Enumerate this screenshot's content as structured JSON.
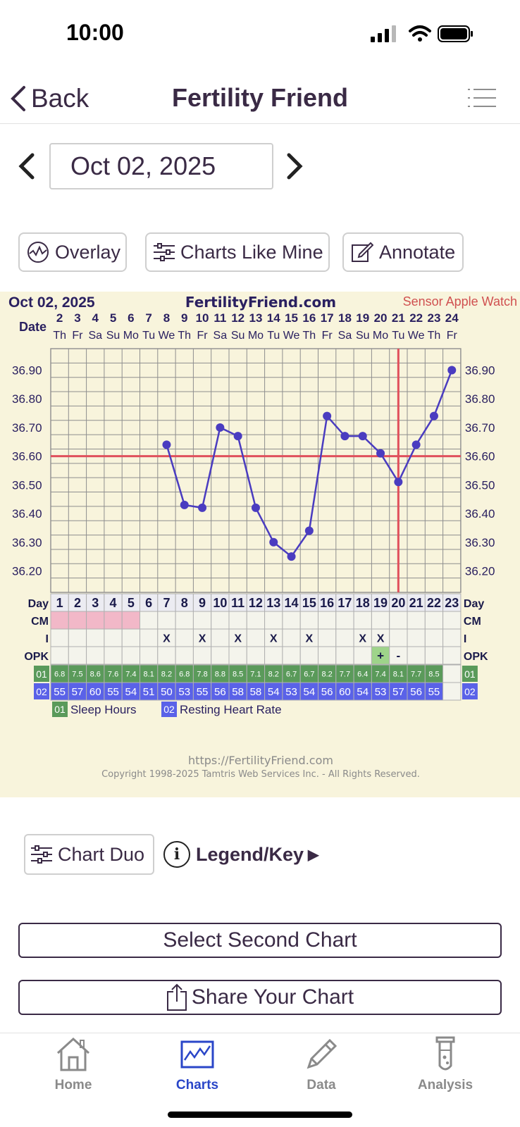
{
  "status": {
    "time": "10:00"
  },
  "nav": {
    "back_label": "Back",
    "title": "Fertility Friend"
  },
  "date_picker": {
    "value": "Oct 02, 2025"
  },
  "actions": {
    "overlay": "Overlay",
    "charts_like_mine": "Charts Like Mine",
    "annotate": "Annotate"
  },
  "chart_data": {
    "type": "line",
    "header": {
      "date": "Oct 02, 2025",
      "site": "FertilityFriend.com",
      "sensor": "Sensor Apple Watch"
    },
    "date_label": "Date",
    "dates": [
      "2",
      "3",
      "4",
      "5",
      "6",
      "7",
      "8",
      "9",
      "10",
      "11",
      "12",
      "13",
      "14",
      "15",
      "16",
      "17",
      "18",
      "19",
      "20",
      "21",
      "22",
      "23",
      "24"
    ],
    "weekdays": [
      "Th",
      "Fr",
      "Sa",
      "Su",
      "Mo",
      "Tu",
      "We",
      "Th",
      "Fr",
      "Sa",
      "Su",
      "Mo",
      "Tu",
      "We",
      "Th",
      "Fr",
      "Sa",
      "Su",
      "Mo",
      "Tu",
      "We",
      "Th",
      "Fr"
    ],
    "y_ticks": [
      "36.90",
      "36.80",
      "36.70",
      "36.60",
      "36.50",
      "36.40",
      "36.30",
      "36.20"
    ],
    "ylim": [
      36.125,
      36.975
    ],
    "temps": [
      null,
      null,
      null,
      null,
      null,
      null,
      36.64,
      36.43,
      36.42,
      36.7,
      36.67,
      36.42,
      36.3,
      36.25,
      36.34,
      36.74,
      36.67,
      36.67,
      36.61,
      36.51,
      36.64,
      36.74,
      36.9
    ],
    "coverline": 36.6,
    "ovulation_day_index": 19,
    "row_labels": {
      "day": "Day",
      "cm": "CM",
      "i": "I",
      "opk": "OPK",
      "r1": "01",
      "r2": "02"
    },
    "days": [
      "1",
      "2",
      "3",
      "4",
      "5",
      "6",
      "7",
      "8",
      "9",
      "10",
      "11",
      "12",
      "13",
      "14",
      "15",
      "16",
      "17",
      "18",
      "19",
      "20",
      "21",
      "22",
      "23"
    ],
    "cm": [
      "p",
      "p",
      "p",
      "p",
      "p",
      "",
      "",
      "",
      "",
      "",
      "",
      "",
      "",
      "",
      "",
      "",
      "",
      "",
      "",
      "",
      "",
      "",
      ""
    ],
    "intercourse": [
      "",
      "",
      "",
      "",
      "",
      "",
      "X",
      "",
      "X",
      "",
      "X",
      "",
      "X",
      "",
      "X",
      "",
      "",
      "X",
      "X",
      "",
      "",
      "",
      ""
    ],
    "opk": [
      "",
      "",
      "",
      "",
      "",
      "",
      "",
      "",
      "",
      "",
      "",
      "",
      "",
      "",
      "",
      "",
      "",
      "",
      "+",
      "-",
      "",
      "",
      ""
    ],
    "sleep_hours": [
      "6.8",
      "7.5",
      "8.6",
      "7.6",
      "7.4",
      "8.1",
      "8.2",
      "6.8",
      "7.8",
      "8.8",
      "8.5",
      "7.1",
      "8.2",
      "6.7",
      "6.7",
      "8.2",
      "7.7",
      "6.4",
      "7.4",
      "8.1",
      "7.7",
      "8.5",
      ""
    ],
    "resting_hr": [
      "55",
      "57",
      "60",
      "55",
      "54",
      "51",
      "50",
      "53",
      "55",
      "56",
      "58",
      "58",
      "54",
      "53",
      "54",
      "56",
      "60",
      "54",
      "53",
      "57",
      "56",
      "55",
      ""
    ],
    "legend": {
      "sleep": "Sleep Hours",
      "rhr": "Resting Heart Rate"
    },
    "footer": {
      "url": "https://FertilityFriend.com",
      "copyright": "Copyright 1998-2025 Tamtris Web Services Inc. - All Rights Reserved."
    },
    "colors": {
      "line": "#4a3cc0",
      "coverline": "#e0505c",
      "grid": "#8e8e8e",
      "cm": "#f2b8c8",
      "sleep": "#5a9a5a",
      "rhr": "#5a62e8",
      "opk_positive": "#9ed48a"
    }
  },
  "controls": {
    "chart_duo": "Chart Duo",
    "legend_key": "Legend/Key",
    "legend_arrow": "▶"
  },
  "buttons": {
    "select_second": "Select Second Chart",
    "share": "Share Your Chart"
  },
  "tabs": [
    {
      "label": "Home",
      "icon": "house-icon"
    },
    {
      "label": "Charts",
      "icon": "chart-icon"
    },
    {
      "label": "Data",
      "icon": "pencil-icon"
    },
    {
      "label": "Analysis",
      "icon": "test-tube-icon"
    }
  ]
}
